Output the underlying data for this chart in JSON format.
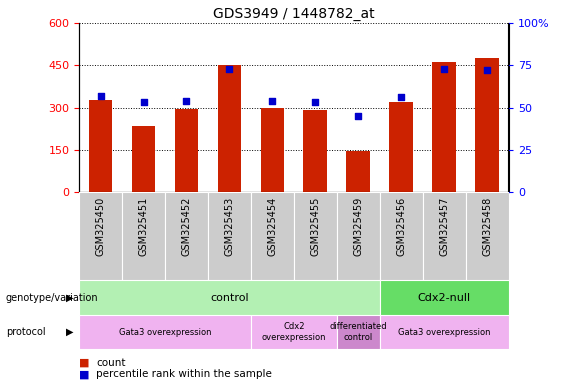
{
  "title": "GDS3949 / 1448782_at",
  "samples": [
    "GSM325450",
    "GSM325451",
    "GSM325452",
    "GSM325453",
    "GSM325454",
    "GSM325455",
    "GSM325459",
    "GSM325456",
    "GSM325457",
    "GSM325458"
  ],
  "counts": [
    325,
    235,
    295,
    450,
    300,
    290,
    145,
    320,
    460,
    475
  ],
  "percentile_ranks": [
    57,
    53,
    54,
    73,
    54,
    53,
    45,
    56,
    73,
    72
  ],
  "ylim_left": [
    0,
    600
  ],
  "ylim_right": [
    0,
    100
  ],
  "yticks_left": [
    0,
    150,
    300,
    450,
    600
  ],
  "yticks_right": [
    0,
    25,
    50,
    75,
    100
  ],
  "bar_color": "#cc2200",
  "dot_color": "#0000cc",
  "genotype_groups": [
    {
      "label": "control",
      "start": 0,
      "end": 7,
      "color": "#b3f0b3"
    },
    {
      "label": "Cdx2-null",
      "start": 7,
      "end": 10,
      "color": "#66dd66"
    }
  ],
  "protocol_groups": [
    {
      "label": "Gata3 overexpression",
      "start": 0,
      "end": 4,
      "color": "#f0b3f0"
    },
    {
      "label": "Cdx2\noverexpression",
      "start": 4,
      "end": 6,
      "color": "#f0b3f0"
    },
    {
      "label": "differentiated\ncontrol",
      "start": 6,
      "end": 7,
      "color": "#cc88cc"
    },
    {
      "label": "Gata3 overexpression",
      "start": 7,
      "end": 10,
      "color": "#f0b3f0"
    }
  ],
  "legend_count_label": "count",
  "legend_percentile_label": "percentile rank within the sample",
  "genotype_label": "genotype/variation",
  "protocol_label": "protocol",
  "bg_color": "#ffffff",
  "xticklabel_bg": "#cccccc"
}
